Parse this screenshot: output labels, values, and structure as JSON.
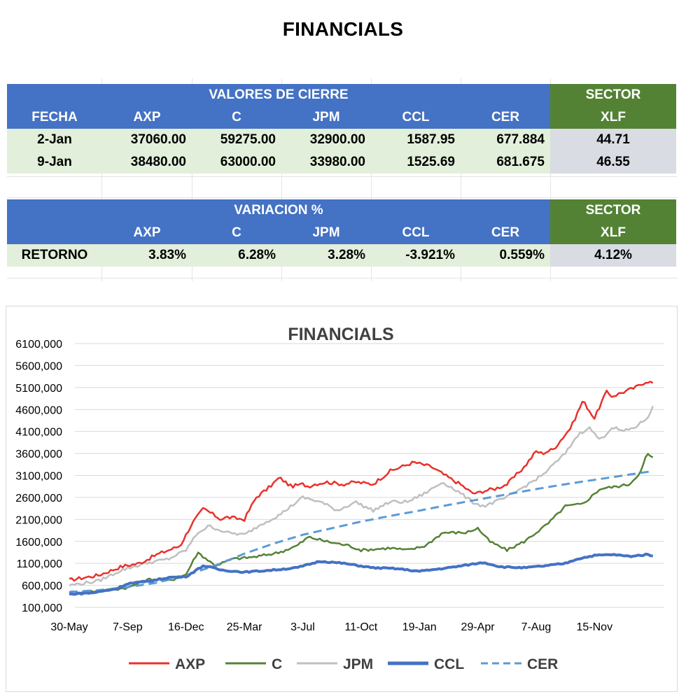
{
  "title": "FINANCIALS",
  "table1": {
    "group_header": "VALORES DE CIERRE",
    "sector_header": "SECTOR",
    "columns": [
      "FECHA",
      "AXP",
      "C",
      "JPM",
      "CCL",
      "CER"
    ],
    "sector_column": "XLF",
    "rows": [
      {
        "cells": [
          "2-Jan",
          "37060.00",
          "59275.00",
          "32900.00",
          "1587.95",
          "677.884"
        ],
        "sector": "44.71"
      },
      {
        "cells": [
          "9-Jan",
          "38480.00",
          "63000.00",
          "33980.00",
          "1525.69",
          "681.675"
        ],
        "sector": "46.55"
      }
    ]
  },
  "table2": {
    "group_header": "VARIACION %",
    "sector_header": "SECTOR",
    "columns": [
      "",
      "AXP",
      "C",
      "JPM",
      "CCL",
      "CER"
    ],
    "sector_column": "XLF",
    "rows": [
      {
        "cells": [
          "RETORNO",
          "3.83%",
          "6.28%",
          "3.28%",
          "-3.921%",
          "0.559%"
        ],
        "sector": "4.12%"
      }
    ]
  },
  "chart_data": {
    "type": "line",
    "title": "FINANCIALS",
    "categories": [
      "30-May",
      "7-Sep",
      "16-Dec",
      "25-Mar",
      "3-Jul",
      "11-Oct",
      "19-Jan",
      "29-Apr",
      "7-Aug",
      "15-Nov"
    ],
    "ylim": [
      100000,
      6100000
    ],
    "yticks": [
      100000,
      600000,
      1100000,
      1600000,
      2100000,
      2600000,
      3100000,
      3600000,
      4100000,
      4600000,
      5100000,
      5600000,
      6100000
    ],
    "ytick_labels": [
      "100,000",
      "600,000",
      "1100,000",
      "1600,000",
      "2100,000",
      "2600,000",
      "3100,000",
      "3600,000",
      "4100,000",
      "4600,000",
      "5100,000",
      "5600,000",
      "6100,000"
    ],
    "x_range": [
      0,
      10.1
    ],
    "series": [
      {
        "name": "AXP",
        "color": "#e8312b",
        "dash": "solid",
        "noise": 40000,
        "x": [
          0,
          0.5,
          0.9,
          1.2,
          1.5,
          1.9,
          2.1,
          2.3,
          2.6,
          2.7,
          3.0,
          3.2,
          3.4,
          3.6,
          3.8,
          4.0,
          4.1,
          4.2,
          4.4,
          4.7,
          4.9,
          5.2,
          5.5,
          5.9,
          6.2,
          6.5,
          6.7,
          6.9,
          7.0,
          7.1,
          7.3,
          7.5,
          7.8,
          8.0,
          8.1,
          8.3,
          8.6,
          8.8,
          9.0,
          9.2,
          9.3,
          9.5,
          9.7,
          9.9,
          10.0
        ],
        "y": [
          720000,
          830000,
          1030000,
          1100000,
          1300000,
          1500000,
          2000000,
          2350000,
          2100000,
          2150000,
          2100000,
          2600000,
          2800000,
          3050000,
          2850000,
          2900000,
          2850000,
          2900000,
          2950000,
          2900000,
          2950000,
          2900000,
          3200000,
          3400000,
          3300000,
          3050000,
          2900000,
          2700000,
          2700000,
          2750000,
          2800000,
          2900000,
          3300000,
          3650000,
          3600000,
          3700000,
          4200000,
          4800000,
          4400000,
          5000000,
          4900000,
          5000000,
          5100000,
          5250000,
          5200000
        ]
      },
      {
        "name": "C",
        "color": "#548235",
        "dash": "solid",
        "noise": 30000,
        "x": [
          0,
          0.6,
          1.0,
          1.4,
          1.7,
          2.0,
          2.2,
          2.5,
          2.8,
          3.2,
          3.6,
          3.9,
          4.1,
          4.4,
          4.8,
          5.0,
          5.5,
          5.8,
          6.1,
          6.4,
          6.8,
          7.0,
          7.2,
          7.5,
          7.8,
          8.0,
          8.2,
          8.5,
          8.8,
          9.1,
          9.4,
          9.6,
          9.8,
          9.9,
          10.0
        ],
        "y": [
          440000,
          480000,
          550000,
          750000,
          700000,
          850000,
          1350000,
          1050000,
          1200000,
          1250000,
          1350000,
          1500000,
          1700000,
          1600000,
          1500000,
          1400000,
          1450000,
          1400000,
          1500000,
          1800000,
          1800000,
          1900000,
          1600000,
          1400000,
          1600000,
          1800000,
          2000000,
          2400000,
          2450000,
          2800000,
          2850000,
          2900000,
          3200000,
          3600000,
          3500000
        ]
      },
      {
        "name": "JPM",
        "color": "#bfbfbf",
        "dash": "solid",
        "noise": 35000,
        "x": [
          0,
          0.5,
          0.9,
          1.3,
          1.7,
          2.0,
          2.2,
          2.4,
          2.7,
          3.0,
          3.3,
          3.6,
          3.8,
          4.0,
          4.3,
          4.6,
          4.9,
          5.2,
          5.5,
          5.8,
          6.1,
          6.4,
          6.7,
          6.9,
          7.1,
          7.3,
          7.5,
          7.8,
          8.1,
          8.3,
          8.5,
          8.7,
          8.9,
          9.1,
          9.3,
          9.5,
          9.7,
          9.9,
          10.0
        ],
        "y": [
          600000,
          700000,
          950000,
          1100000,
          1200000,
          1400000,
          1800000,
          1950000,
          1800000,
          1750000,
          2000000,
          2200000,
          2400000,
          2600000,
          2500000,
          2300000,
          2500000,
          2300000,
          2500000,
          2500000,
          2700000,
          2950000,
          2700000,
          2500000,
          2400000,
          2500000,
          2600000,
          2850000,
          3100000,
          3350000,
          3600000,
          4000000,
          4200000,
          3900000,
          4200000,
          4100000,
          4200000,
          4400000,
          4650000
        ]
      },
      {
        "name": "CCL",
        "color": "#4472c4",
        "dash": "solid",
        "noise": 15000,
        "x": [
          0,
          0.4,
          0.8,
          1.0,
          1.4,
          1.7,
          2.0,
          2.3,
          2.6,
          3.0,
          3.5,
          3.9,
          4.3,
          4.7,
          5.2,
          5.6,
          6.0,
          6.5,
          6.9,
          7.1,
          7.4,
          7.8,
          8.2,
          8.5,
          8.7,
          9.0,
          9.3,
          9.6,
          9.9,
          10.0
        ],
        "y": [
          400000,
          430000,
          520000,
          640000,
          700000,
          780000,
          800000,
          1050000,
          950000,
          900000,
          950000,
          1000000,
          1150000,
          1100000,
          1000000,
          980000,
          920000,
          1000000,
          1080000,
          1120000,
          1020000,
          1000000,
          1050000,
          1100000,
          1200000,
          1280000,
          1300000,
          1260000,
          1300000,
          1280000
        ]
      },
      {
        "name": "CER",
        "color": "#5b9bd5",
        "dash": "dashed",
        "noise": 0,
        "x": [
          0,
          0.5,
          1.0,
          1.5,
          2.0,
          2.5,
          3.0,
          3.5,
          4.0,
          4.5,
          5.0,
          5.5,
          6.0,
          6.5,
          7.0,
          7.5,
          8.0,
          8.5,
          9.0,
          9.5,
          10.0
        ],
        "y": [
          450000,
          490000,
          560000,
          660000,
          830000,
          1050000,
          1320000,
          1550000,
          1750000,
          1900000,
          2050000,
          2180000,
          2300000,
          2430000,
          2550000,
          2670000,
          2790000,
          2900000,
          3000000,
          3100000,
          3200000
        ]
      }
    ],
    "legend": [
      "AXP",
      "C",
      "JPM",
      "CCL",
      "CER"
    ],
    "legend_position": "bottom"
  }
}
